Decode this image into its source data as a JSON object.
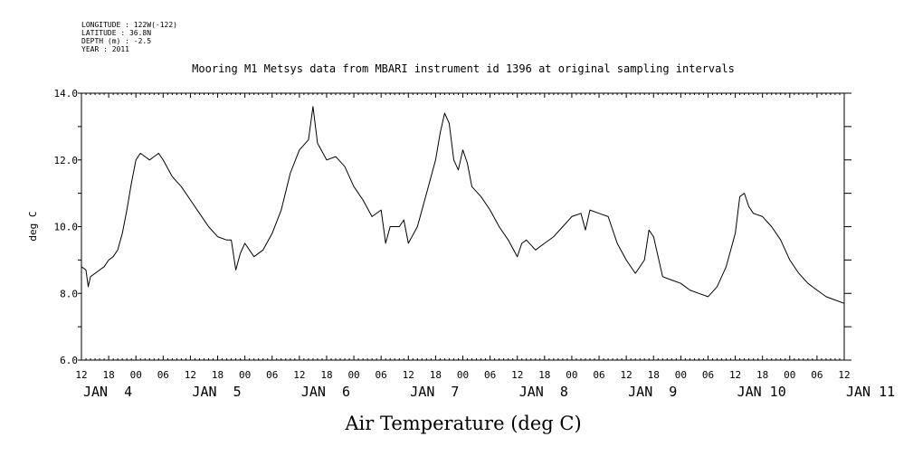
{
  "header": {
    "meta_lines": [
      "LONGITUDE : 122W(-122)",
      "LATITUDE : 36.8N",
      "DEPTH (m) : -2.5",
      "YEAR : 2011"
    ]
  },
  "chart_data": {
    "type": "line",
    "title": "Mooring M1 Metsys data from MBARI instrument id 1396 at original sampling intervals",
    "xlabel": "Air Temperature (deg C)",
    "ylabel": "deg C",
    "ylim": [
      6.0,
      14.0
    ],
    "yticks": [
      "6.0",
      "8.0",
      "10.0",
      "12.0",
      "14.0"
    ],
    "x_hour_ticks": [
      "12",
      "18",
      "00",
      "06",
      "12",
      "18",
      "00",
      "06",
      "12",
      "18",
      "00",
      "06",
      "12",
      "18",
      "00",
      "06",
      "12",
      "18",
      "00",
      "06",
      "12",
      "18",
      "00",
      "06",
      "12",
      "18",
      "00",
      "06",
      "12"
    ],
    "x_day_labels": [
      "JAN  4",
      "JAN  5",
      "JAN  6",
      "JAN  7",
      "JAN  8",
      "JAN  9",
      "JAN 10",
      "JAN 11"
    ],
    "xlim_hours": [
      0,
      168
    ],
    "x_units": "hours since JAN 3 12:00",
    "grid": false,
    "series": [
      {
        "values": [
          [
            0,
            8.8
          ],
          [
            1,
            8.7
          ],
          [
            1.5,
            8.2
          ],
          [
            2,
            8.5
          ],
          [
            3,
            8.6
          ],
          [
            4,
            8.7
          ],
          [
            5,
            8.8
          ],
          [
            6,
            9.0
          ],
          [
            7,
            9.1
          ],
          [
            8,
            9.3
          ],
          [
            9,
            9.8
          ],
          [
            10,
            10.5
          ],
          [
            11,
            11.3
          ],
          [
            12,
            12.0
          ],
          [
            13,
            12.2
          ],
          [
            14,
            12.1
          ],
          [
            15,
            12.0
          ],
          [
            16,
            12.1
          ],
          [
            17,
            12.2
          ],
          [
            18,
            12.0
          ],
          [
            20,
            11.5
          ],
          [
            22,
            11.2
          ],
          [
            24,
            10.8
          ],
          [
            26,
            10.4
          ],
          [
            28,
            10.0
          ],
          [
            30,
            9.7
          ],
          [
            32,
            9.6
          ],
          [
            33,
            9.6
          ],
          [
            34,
            8.7
          ],
          [
            35,
            9.2
          ],
          [
            36,
            9.5
          ],
          [
            38,
            9.1
          ],
          [
            40,
            9.3
          ],
          [
            42,
            9.8
          ],
          [
            44,
            10.5
          ],
          [
            46,
            11.6
          ],
          [
            48,
            12.3
          ],
          [
            50,
            12.6
          ],
          [
            51,
            13.6
          ],
          [
            52,
            12.5
          ],
          [
            54,
            12.0
          ],
          [
            56,
            12.1
          ],
          [
            58,
            11.8
          ],
          [
            60,
            11.2
          ],
          [
            62,
            10.8
          ],
          [
            64,
            10.3
          ],
          [
            66,
            10.5
          ],
          [
            67,
            9.5
          ],
          [
            68,
            10.0
          ],
          [
            70,
            10.0
          ],
          [
            71,
            10.2
          ],
          [
            72,
            9.5
          ],
          [
            74,
            10.0
          ],
          [
            76,
            11.0
          ],
          [
            78,
            12.0
          ],
          [
            79,
            12.8
          ],
          [
            80,
            13.4
          ],
          [
            81,
            13.1
          ],
          [
            82,
            12.0
          ],
          [
            83,
            11.7
          ],
          [
            84,
            12.3
          ],
          [
            85,
            11.9
          ],
          [
            86,
            11.2
          ],
          [
            88,
            10.9
          ],
          [
            90,
            10.5
          ],
          [
            92,
            10.0
          ],
          [
            94,
            9.6
          ],
          [
            96,
            9.1
          ],
          [
            97,
            9.5
          ],
          [
            98,
            9.6
          ],
          [
            100,
            9.3
          ],
          [
            102,
            9.5
          ],
          [
            104,
            9.7
          ],
          [
            106,
            10.0
          ],
          [
            108,
            10.3
          ],
          [
            110,
            10.4
          ],
          [
            111,
            9.9
          ],
          [
            112,
            10.5
          ],
          [
            114,
            10.4
          ],
          [
            116,
            10.3
          ],
          [
            118,
            9.5
          ],
          [
            120,
            9.0
          ],
          [
            122,
            8.6
          ],
          [
            124,
            9.0
          ],
          [
            125,
            9.9
          ],
          [
            126,
            9.7
          ],
          [
            128,
            8.5
          ],
          [
            130,
            8.4
          ],
          [
            132,
            8.3
          ],
          [
            134,
            8.1
          ],
          [
            136,
            8.0
          ],
          [
            138,
            7.9
          ],
          [
            140,
            8.2
          ],
          [
            142,
            8.8
          ],
          [
            144,
            9.8
          ],
          [
            145,
            10.9
          ],
          [
            146,
            11.0
          ],
          [
            147,
            10.6
          ],
          [
            148,
            10.4
          ],
          [
            150,
            10.3
          ],
          [
            152,
            10.0
          ],
          [
            154,
            9.6
          ],
          [
            156,
            9.0
          ],
          [
            158,
            8.6
          ],
          [
            160,
            8.3
          ],
          [
            162,
            8.1
          ],
          [
            164,
            7.9
          ],
          [
            166,
            7.8
          ],
          [
            168,
            7.7
          ]
        ]
      }
    ]
  }
}
